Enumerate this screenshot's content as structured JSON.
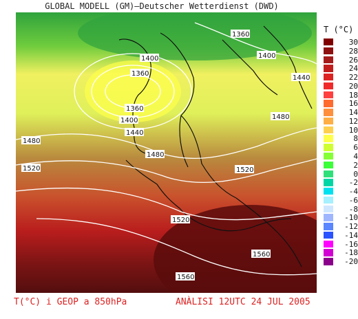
{
  "header": {
    "title": "GLOBAL MODELL (GM)—Deutscher Wetterdienst (DWD)"
  },
  "legend": {
    "title": "T (°C)",
    "ticks": [
      "30",
      "28",
      "26",
      "24",
      "22",
      "20",
      "18",
      "16",
      "14",
      "12",
      "10",
      "8",
      "6",
      "4",
      "2",
      "0",
      "-2",
      "-4",
      "-6",
      "-8",
      "-10",
      "-12",
      "-14",
      "-16",
      "-18",
      "-20"
    ],
    "colors": [
      "#800000",
      "#8e1010",
      "#a51a1a",
      "#c21d1d",
      "#dd2222",
      "#f02a2a",
      "#ff4040",
      "#ff6a2f",
      "#ff8f3d",
      "#ffae45",
      "#ffd04f",
      "#ffff4a",
      "#cfff32",
      "#85ff36",
      "#3cff3a",
      "#2fe07a",
      "#00d6a5",
      "#00e1f0",
      "#a6f0ff",
      "#cfe6ff",
      "#9fb6ff",
      "#5a86ff",
      "#2a52ff",
      "#ff00ff",
      "#d300d3",
      "#8b008b"
    ]
  },
  "map": {
    "contour_labels": [
      "1400",
      "1360",
      "1360",
      "1400",
      "1440",
      "1480",
      "1520",
      "1480",
      "1520",
      "1520",
      "1560",
      "1560",
      "1360",
      "1400",
      "1440",
      "1480"
    ]
  },
  "footer": {
    "left": "T(°C) i GEOP a 850hPa",
    "right": "ANÀLISI 12UTC 24 JUL 2005"
  }
}
